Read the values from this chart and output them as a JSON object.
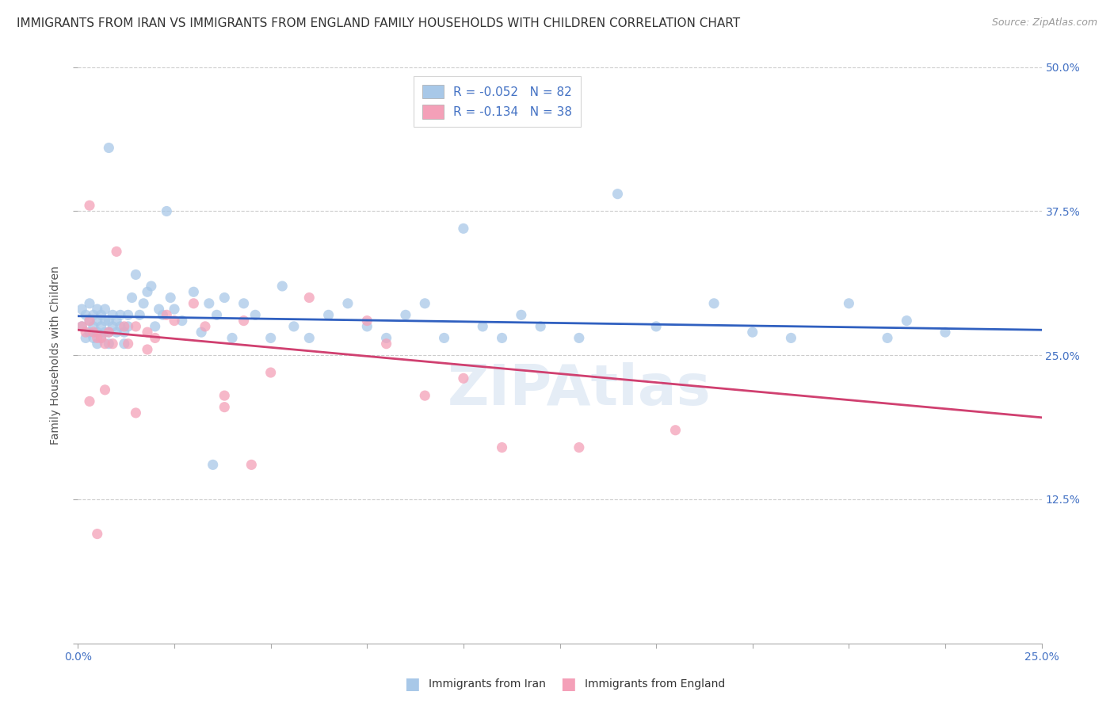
{
  "title": "IMMIGRANTS FROM IRAN VS IMMIGRANTS FROM ENGLAND FAMILY HOUSEHOLDS WITH CHILDREN CORRELATION CHART",
  "source": "Source: ZipAtlas.com",
  "ylabel": "Family Households with Children",
  "xlim": [
    0.0,
    0.25
  ],
  "ylim": [
    0.0,
    0.5
  ],
  "iran_line_color": "#3060c0",
  "england_line_color": "#d04070",
  "legend_iran_color": "#a8c8e8",
  "legend_england_color": "#f4a0b8",
  "iran_R": -0.052,
  "iran_N": 82,
  "england_R": -0.134,
  "england_N": 38,
  "iran_trend_y0": 0.284,
  "iran_trend_y1": 0.272,
  "england_trend_y0": 0.272,
  "england_trend_y1": 0.196,
  "iran_points_x": [
    0.001,
    0.001,
    0.002,
    0.002,
    0.003,
    0.003,
    0.003,
    0.004,
    0.004,
    0.004,
    0.005,
    0.005,
    0.005,
    0.005,
    0.006,
    0.006,
    0.006,
    0.007,
    0.007,
    0.007,
    0.008,
    0.008,
    0.008,
    0.009,
    0.009,
    0.01,
    0.01,
    0.011,
    0.011,
    0.012,
    0.012,
    0.013,
    0.013,
    0.014,
    0.015,
    0.016,
    0.017,
    0.018,
    0.019,
    0.02,
    0.021,
    0.022,
    0.023,
    0.024,
    0.025,
    0.027,
    0.03,
    0.032,
    0.034,
    0.036,
    0.038,
    0.04,
    0.043,
    0.046,
    0.05,
    0.053,
    0.056,
    0.06,
    0.065,
    0.07,
    0.075,
    0.08,
    0.085,
    0.09,
    0.095,
    0.1,
    0.105,
    0.11,
    0.115,
    0.12,
    0.13,
    0.14,
    0.15,
    0.165,
    0.175,
    0.185,
    0.2,
    0.21,
    0.215,
    0.225,
    0.008,
    0.035
  ],
  "iran_points_y": [
    0.29,
    0.275,
    0.285,
    0.265,
    0.28,
    0.27,
    0.295,
    0.275,
    0.285,
    0.265,
    0.28,
    0.27,
    0.26,
    0.29,
    0.285,
    0.275,
    0.265,
    0.29,
    0.28,
    0.27,
    0.28,
    0.27,
    0.26,
    0.285,
    0.275,
    0.28,
    0.27,
    0.285,
    0.275,
    0.27,
    0.26,
    0.285,
    0.275,
    0.3,
    0.32,
    0.285,
    0.295,
    0.305,
    0.31,
    0.275,
    0.29,
    0.285,
    0.375,
    0.3,
    0.29,
    0.28,
    0.305,
    0.27,
    0.295,
    0.285,
    0.3,
    0.265,
    0.295,
    0.285,
    0.265,
    0.31,
    0.275,
    0.265,
    0.285,
    0.295,
    0.275,
    0.265,
    0.285,
    0.295,
    0.265,
    0.36,
    0.275,
    0.265,
    0.285,
    0.275,
    0.265,
    0.39,
    0.275,
    0.295,
    0.27,
    0.265,
    0.295,
    0.265,
    0.28,
    0.27,
    0.43,
    0.155
  ],
  "england_points_x": [
    0.001,
    0.002,
    0.003,
    0.003,
    0.004,
    0.005,
    0.005,
    0.006,
    0.007,
    0.008,
    0.009,
    0.01,
    0.012,
    0.013,
    0.015,
    0.018,
    0.018,
    0.02,
    0.023,
    0.025,
    0.03,
    0.033,
    0.038,
    0.038,
    0.043,
    0.05,
    0.06,
    0.075,
    0.08,
    0.09,
    0.1,
    0.11,
    0.13,
    0.155,
    0.003,
    0.007,
    0.015,
    0.045
  ],
  "england_points_y": [
    0.275,
    0.27,
    0.28,
    0.38,
    0.27,
    0.265,
    0.095,
    0.265,
    0.26,
    0.27,
    0.26,
    0.34,
    0.275,
    0.26,
    0.275,
    0.27,
    0.255,
    0.265,
    0.285,
    0.28,
    0.295,
    0.275,
    0.205,
    0.215,
    0.28,
    0.235,
    0.3,
    0.28,
    0.26,
    0.215,
    0.23,
    0.17,
    0.17,
    0.185,
    0.21,
    0.22,
    0.2,
    0.155
  ],
  "watermark_text": "ZIPAtlas",
  "background_color": "#ffffff",
  "title_fontsize": 11,
  "axis_label_fontsize": 10,
  "tick_fontsize": 10,
  "legend_fontsize": 10,
  "source_fontsize": 9
}
